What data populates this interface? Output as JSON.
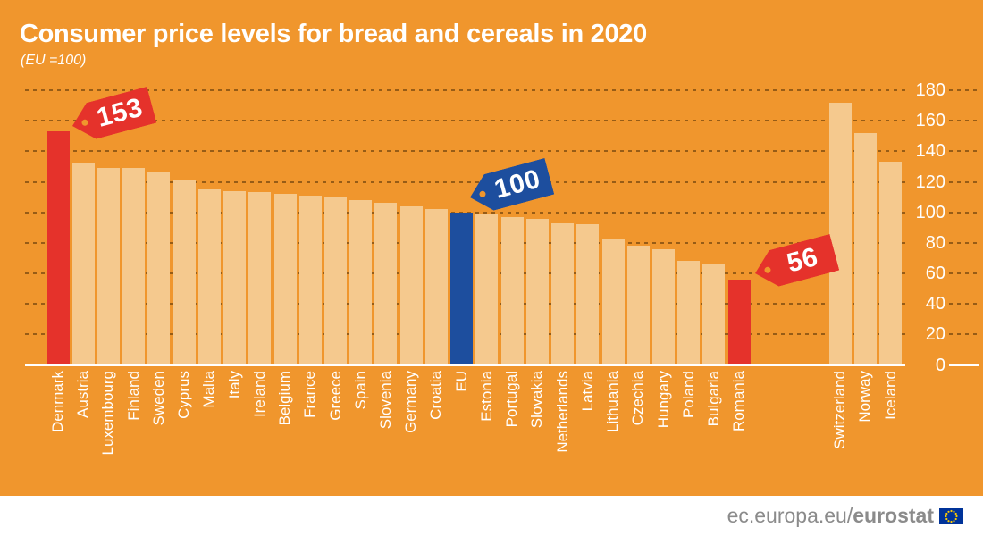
{
  "title": "Consumer price levels for bread and cereals in 2020",
  "subtitle": "(EU =100)",
  "colors": {
    "background": "#F0962D",
    "bar_default": "#F5C98E",
    "bar_red": "#E5322B",
    "bar_blue": "#1D4E9E",
    "grid_dash": "#875212",
    "axis_text": "#FFFFFF",
    "footer_text": "#8B8B8B",
    "flag_blue": "#003399",
    "flag_stars": "#FFCC00"
  },
  "footer": {
    "link_prefix": "ec.europa.eu/",
    "link_bold": "eurostat"
  },
  "chart_data": {
    "type": "bar",
    "title": "Consumer price levels for bread and cereals in 2020",
    "subtitle": "(EU =100)",
    "unit": "price level index, EU = 100",
    "ylim": [
      0,
      180
    ],
    "yticks": [
      0,
      20,
      40,
      60,
      80,
      100,
      120,
      140,
      160,
      180
    ],
    "grid": "dashed-horizontal",
    "legend": "none",
    "eu_group": [
      {
        "label": "Denmark",
        "value": 153,
        "color": "red"
      },
      {
        "label": "Austria",
        "value": 132,
        "color": "default"
      },
      {
        "label": "Luxembourg",
        "value": 129,
        "color": "default"
      },
      {
        "label": "Finland",
        "value": 129,
        "color": "default"
      },
      {
        "label": "Sweden",
        "value": 127,
        "color": "default"
      },
      {
        "label": "Cyprus",
        "value": 121,
        "color": "default"
      },
      {
        "label": "Malta",
        "value": 115,
        "color": "default"
      },
      {
        "label": "Italy",
        "value": 114,
        "color": "default"
      },
      {
        "label": "Ireland",
        "value": 113,
        "color": "default"
      },
      {
        "label": "Belgium",
        "value": 112,
        "color": "default"
      },
      {
        "label": "France",
        "value": 111,
        "color": "default"
      },
      {
        "label": "Greece",
        "value": 110,
        "color": "default"
      },
      {
        "label": "Spain",
        "value": 108,
        "color": "default"
      },
      {
        "label": "Slovenia",
        "value": 106,
        "color": "default"
      },
      {
        "label": "Germany",
        "value": 104,
        "color": "default"
      },
      {
        "label": "Croatia",
        "value": 102,
        "color": "default"
      },
      {
        "label": "EU",
        "value": 100,
        "color": "blue"
      },
      {
        "label": "Estonia",
        "value": 99,
        "color": "default"
      },
      {
        "label": "Portugal",
        "value": 97,
        "color": "default"
      },
      {
        "label": "Slovakia",
        "value": 96,
        "color": "default"
      },
      {
        "label": "Netherlands",
        "value": 93,
        "color": "default"
      },
      {
        "label": "Latvia",
        "value": 92,
        "color": "default"
      },
      {
        "label": "Lithuania",
        "value": 82,
        "color": "default"
      },
      {
        "label": "Czechia",
        "value": 78,
        "color": "default"
      },
      {
        "label": "Hungary",
        "value": 76,
        "color": "default"
      },
      {
        "label": "Poland",
        "value": 68,
        "color": "default"
      },
      {
        "label": "Bulgaria",
        "value": 66,
        "color": "default"
      },
      {
        "label": "Romania",
        "value": 56,
        "color": "red"
      }
    ],
    "efta_group": [
      {
        "label": "Switzerland",
        "value": 172,
        "color": "default"
      },
      {
        "label": "Norway",
        "value": 152,
        "color": "default"
      },
      {
        "label": "Iceland",
        "value": 133,
        "color": "default"
      }
    ],
    "tags": [
      {
        "text": "153",
        "bar": "Denmark",
        "color": "red"
      },
      {
        "text": "100",
        "bar": "EU",
        "color": "blue"
      },
      {
        "text": "56",
        "bar": "Romania",
        "color": "red"
      }
    ]
  }
}
